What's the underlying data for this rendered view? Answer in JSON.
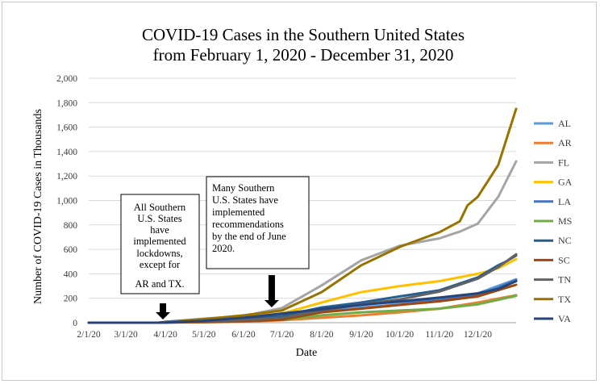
{
  "chart_data": {
    "type": "line",
    "title_lines": [
      "COVID-19 Cases in the Southern United States",
      "from February 1, 2020 - December 31, 2020"
    ],
    "xlabel": "Date",
    "ylabel": "Number of COVID-19 Cases in Thousands",
    "ylim": [
      0,
      2000
    ],
    "y_ticks": [
      0,
      200,
      400,
      600,
      800,
      1000,
      1200,
      1400,
      1600,
      1800,
      2000
    ],
    "y_tick_labels": [
      "0",
      "200",
      "400",
      "600",
      "800",
      "1,000",
      "1,200",
      "1,400",
      "1,600",
      "1,800",
      "2,000"
    ],
    "xlim": [
      0,
      334
    ],
    "x_ticks": [
      0,
      29,
      60,
      90,
      121,
      151,
      182,
      213,
      243,
      274,
      304
    ],
    "x_tick_labels": [
      "2/1/20",
      "3/1/20",
      "4/1/20",
      "5/1/20",
      "6/1/20",
      "7/1/20",
      "8/1/20",
      "9/1/20",
      "10/1/20",
      "11/1/20",
      "12/1/20"
    ],
    "x_unit": "days since 2/1/20",
    "grid": true,
    "legend_position": "right",
    "series": [
      {
        "name": "AL",
        "color": "#5B9BD5",
        "points": [
          [
            0,
            0
          ],
          [
            55,
            0
          ],
          [
            60,
            1
          ],
          [
            90,
            7
          ],
          [
            121,
            18
          ],
          [
            151,
            38
          ],
          [
            182,
            88
          ],
          [
            213,
            125
          ],
          [
            243,
            150
          ],
          [
            274,
            185
          ],
          [
            304,
            240
          ],
          [
            334,
            355
          ]
        ]
      },
      {
        "name": "AR",
        "color": "#ED7D31",
        "points": [
          [
            0,
            0
          ],
          [
            55,
            0
          ],
          [
            60,
            0.5
          ],
          [
            90,
            3
          ],
          [
            121,
            8
          ],
          [
            151,
            20
          ],
          [
            182,
            40
          ],
          [
            213,
            60
          ],
          [
            243,
            85
          ],
          [
            274,
            115
          ],
          [
            304,
            165
          ],
          [
            334,
            225
          ]
        ]
      },
      {
        "name": "FL",
        "color": "#A5A5A5",
        "points": [
          [
            0,
            0
          ],
          [
            55,
            0
          ],
          [
            60,
            7
          ],
          [
            90,
            33
          ],
          [
            121,
            55
          ],
          [
            151,
            120
          ],
          [
            182,
            305
          ],
          [
            213,
            510
          ],
          [
            243,
            630
          ],
          [
            274,
            690
          ],
          [
            290,
            745
          ],
          [
            304,
            810
          ],
          [
            320,
            1030
          ],
          [
            334,
            1320
          ]
        ]
      },
      {
        "name": "GA",
        "color": "#FFC000",
        "points": [
          [
            0,
            0
          ],
          [
            55,
            0
          ],
          [
            60,
            4
          ],
          [
            90,
            27
          ],
          [
            121,
            46
          ],
          [
            151,
            75
          ],
          [
            182,
            165
          ],
          [
            213,
            250
          ],
          [
            243,
            300
          ],
          [
            274,
            340
          ],
          [
            304,
            400
          ],
          [
            320,
            445
          ],
          [
            334,
            520
          ]
        ]
      },
      {
        "name": "LA",
        "color": "#4472C4",
        "points": [
          [
            0,
            0
          ],
          [
            55,
            0
          ],
          [
            60,
            7
          ],
          [
            90,
            28
          ],
          [
            121,
            40
          ],
          [
            151,
            50
          ],
          [
            182,
            110
          ],
          [
            213,
            150
          ],
          [
            243,
            170
          ],
          [
            274,
            185
          ],
          [
            304,
            230
          ],
          [
            320,
            285
          ],
          [
            334,
            350
          ]
        ]
      },
      {
        "name": "MS",
        "color": "#70AD47",
        "points": [
          [
            0,
            0
          ],
          [
            55,
            0
          ],
          [
            60,
            1
          ],
          [
            90,
            7
          ],
          [
            121,
            15
          ],
          [
            151,
            25
          ],
          [
            182,
            60
          ],
          [
            213,
            85
          ],
          [
            243,
            100
          ],
          [
            274,
            115
          ],
          [
            304,
            150
          ],
          [
            334,
            220
          ]
        ]
      },
      {
        "name": "NC",
        "color": "#255E91",
        "points": [
          [
            0,
            0
          ],
          [
            55,
            0
          ],
          [
            60,
            2
          ],
          [
            90,
            10
          ],
          [
            121,
            25
          ],
          [
            151,
            55
          ],
          [
            182,
            125
          ],
          [
            213,
            165
          ],
          [
            243,
            215
          ],
          [
            274,
            265
          ],
          [
            304,
            370
          ],
          [
            320,
            470
          ],
          [
            326,
            500
          ],
          [
            334,
            550
          ]
        ]
      },
      {
        "name": "SC",
        "color": "#9E480E",
        "points": [
          [
            0,
            0
          ],
          [
            55,
            0
          ],
          [
            60,
            1
          ],
          [
            90,
            6
          ],
          [
            121,
            11
          ],
          [
            151,
            25
          ],
          [
            182,
            85
          ],
          [
            213,
            115
          ],
          [
            243,
            145
          ],
          [
            274,
            175
          ],
          [
            304,
            215
          ],
          [
            334,
            310
          ]
        ]
      },
      {
        "name": "TN",
        "color": "#636363",
        "points": [
          [
            0,
            0
          ],
          [
            55,
            0
          ],
          [
            60,
            3
          ],
          [
            90,
            11
          ],
          [
            121,
            22
          ],
          [
            151,
            40
          ],
          [
            182,
            100
          ],
          [
            213,
            150
          ],
          [
            243,
            190
          ],
          [
            274,
            255
          ],
          [
            304,
            360
          ],
          [
            320,
            455
          ],
          [
            334,
            560
          ]
        ]
      },
      {
        "name": "TX",
        "color": "#997300",
        "points": [
          [
            0,
            0
          ],
          [
            55,
            0
          ],
          [
            60,
            3
          ],
          [
            90,
            29
          ],
          [
            121,
            60
          ],
          [
            151,
            100
          ],
          [
            182,
            250
          ],
          [
            213,
            470
          ],
          [
            243,
            620
          ],
          [
            274,
            740
          ],
          [
            290,
            830
          ],
          [
            296,
            960
          ],
          [
            304,
            1030
          ],
          [
            320,
            1290
          ],
          [
            334,
            1750
          ]
        ]
      },
      {
        "name": "VA",
        "color": "#264478",
        "points": [
          [
            0,
            0
          ],
          [
            55,
            0
          ],
          [
            60,
            2
          ],
          [
            90,
            15
          ],
          [
            121,
            40
          ],
          [
            151,
            75
          ],
          [
            182,
            110
          ],
          [
            213,
            145
          ],
          [
            243,
            175
          ],
          [
            274,
            205
          ],
          [
            304,
            240
          ],
          [
            320,
            275
          ],
          [
            334,
            340
          ]
        ]
      }
    ],
    "annotations": [
      {
        "id": "lockdowns",
        "lines": [
          "All Southern",
          "U.S. States",
          "have",
          "implemented",
          "lockdowns,",
          "except for",
          "AR and TX."
        ],
        "arrow_x": 58
      },
      {
        "id": "recommendations",
        "lines": [
          "Many Southern",
          "U.S. States have",
          "implemented",
          "recommendations",
          "by the end of June",
          "2020."
        ],
        "arrow_x": 143
      }
    ]
  }
}
